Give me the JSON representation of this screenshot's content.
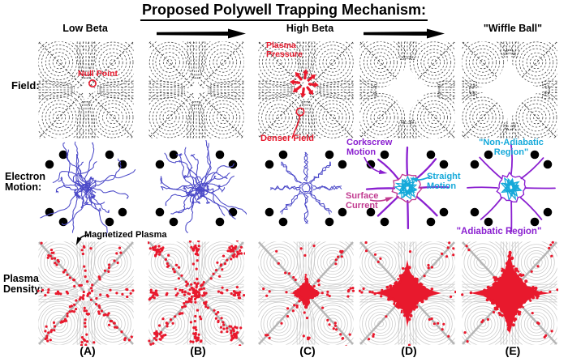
{
  "title": "Proposed Polywell Trapping Mechanism:",
  "header": {
    "stage_low": "Low Beta",
    "stage_high": "High Beta",
    "stage_wiffle": "\"Wiffle Ball\""
  },
  "row_labels": {
    "field": "Field:",
    "electron": "Electron Motion:",
    "plasma": "Plasma Density:"
  },
  "annotations": {
    "null_point": "Null Point",
    "plasma_pressure": "Plasma Pressure",
    "denser_field": "Denser Field",
    "corkscrew_motion": "Corkscrew Motion",
    "straight_motion": "Straight Motion",
    "surface_current": "Surface Current",
    "non_adiabatic": "\"Non-Adiabatic Region\"",
    "adiabatic": "\"Adiabatic Region\"",
    "magnetized_plasma": "Magnetized Plasma"
  },
  "columns": [
    "(A)",
    "(B)",
    "(C)",
    "(D)",
    "(E)"
  ],
  "colors": {
    "red": "#e8192d",
    "electron_blue": "#4b49c8",
    "purple": "#8a1fd0",
    "cyan": "#15a9da",
    "magenta": "#c13a90",
    "field_line": "#3c3c3c",
    "contour_gray": "#c7c7c7",
    "separatrix_gray": "#b5b5b5",
    "black": "#000000"
  }
}
